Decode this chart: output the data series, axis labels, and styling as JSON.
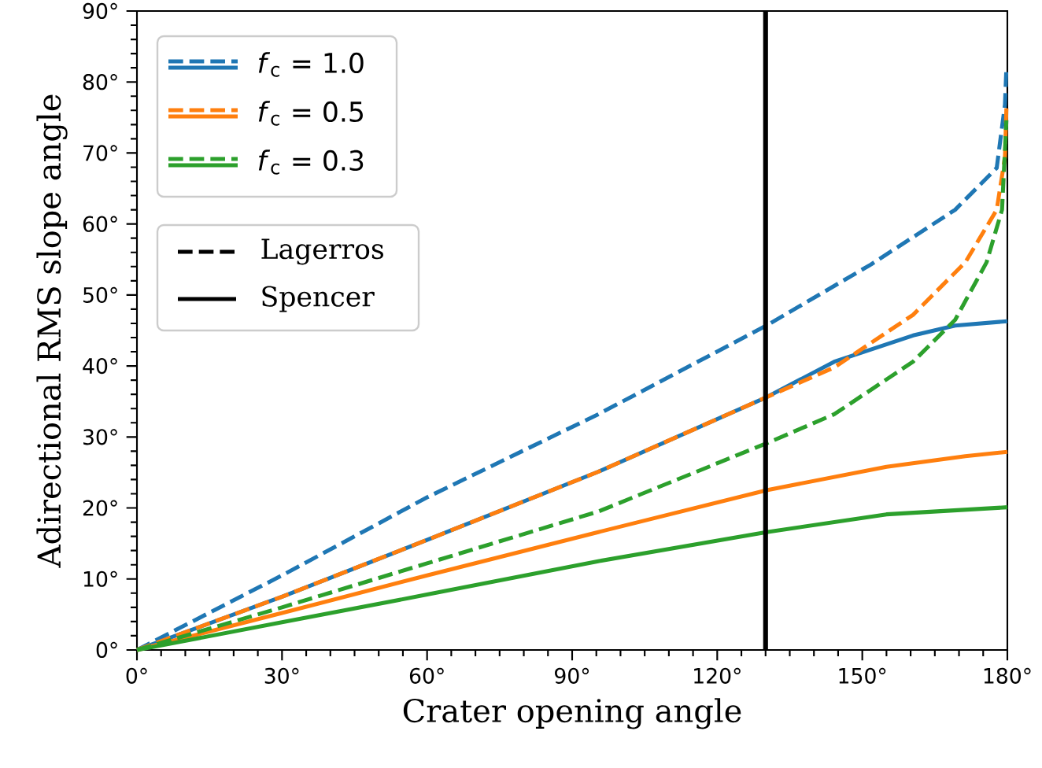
{
  "chart_data": {
    "type": "line",
    "xlabel": "Crater opening angle",
    "ylabel": "Adirectional RMS slope angle",
    "xlim": [
      0,
      180
    ],
    "ylim": [
      0,
      90
    ],
    "xticks": [
      {
        "value": 0,
        "label": "0°"
      },
      {
        "value": 30,
        "label": "30°"
      },
      {
        "value": 60,
        "label": "60°"
      },
      {
        "value": 90,
        "label": "90°"
      },
      {
        "value": 120,
        "label": "120°"
      },
      {
        "value": 150,
        "label": "150°"
      },
      {
        "value": 180,
        "label": "180°"
      }
    ],
    "yticks": [
      {
        "value": 0,
        "label": "0°"
      },
      {
        "value": 10,
        "label": "10°"
      },
      {
        "value": 20,
        "label": "20°"
      },
      {
        "value": 30,
        "label": "30°"
      },
      {
        "value": 40,
        "label": "40°"
      },
      {
        "value": 50,
        "label": "50°"
      },
      {
        "value": 60,
        "label": "60°"
      },
      {
        "value": 70,
        "label": "70°"
      },
      {
        "value": 80,
        "label": "80°"
      },
      {
        "value": 90,
        "label": "90°"
      }
    ],
    "legend": "top left",
    "annotations": [
      "Lagerros",
      "Spencer"
    ],
    "ref_lines": [
      {
        "axis": "x",
        "value": 130,
        "color": "#000000"
      }
    ],
    "series": [
      {
        "name": "*f*$_{c}$ = 1.0",
        "color": "#1f77b4",
        "line_style": "dashed",
        "x": [
          0,
          30,
          60,
          95.4,
          130.2,
          151.8,
          169.2,
          177.8,
          179.5,
          179.8
        ],
        "values": [
          0,
          10.5,
          21.5,
          33.2,
          45.7,
          54.3,
          62.0,
          67.9,
          76.8,
          82
        ]
      },
      {
        "name": "*f*$_{c}$ = 0.5",
        "color": "#ff7f0e",
        "line_style": "dashed",
        "x": [
          0,
          30,
          60,
          95.4,
          130.2,
          144.2,
          160.5,
          171.3,
          177.8,
          179.5,
          179.8
        ],
        "values": [
          0,
          7.5,
          15.5,
          25.1,
          35.6,
          39.8,
          47.2,
          54.6,
          62.0,
          69.4,
          76.3
        ]
      },
      {
        "name": "*f*$_{c}$ = 0.3",
        "color": "#2ca02c",
        "line_style": "dashed",
        "x": [
          0,
          30,
          60,
          95.4,
          130.2,
          144.2,
          160.5,
          169.2,
          175.7,
          178.9,
          179.8
        ],
        "values": [
          0,
          6,
          12.2,
          19.5,
          29.1,
          33.2,
          40.6,
          46.5,
          54.6,
          62.0,
          74.6
        ]
      },
      {
        "color": "#1f77b4",
        "line_style": "solid",
        "x": [
          0,
          30,
          60,
          95.4,
          130.2,
          144.2,
          160.5,
          169.2,
          180
        ],
        "values": [
          0,
          7.5,
          15.5,
          25.1,
          35.6,
          40.6,
          44.3,
          45.7,
          46.3
        ]
      },
      {
        "color": "#ff7f0e",
        "line_style": "solid",
        "x": [
          0,
          30,
          60,
          95.4,
          130.2,
          155,
          171.3,
          180
        ],
        "values": [
          0,
          5.2,
          10.5,
          16.6,
          22.5,
          25.8,
          27.3,
          27.9
        ]
      },
      {
        "color": "#2ca02c",
        "line_style": "solid",
        "x": [
          0,
          30,
          60,
          95.4,
          130.2,
          155,
          180
        ],
        "values": [
          0,
          3.9,
          7.8,
          12.5,
          16.6,
          19.1,
          20.1
        ]
      }
    ]
  }
}
